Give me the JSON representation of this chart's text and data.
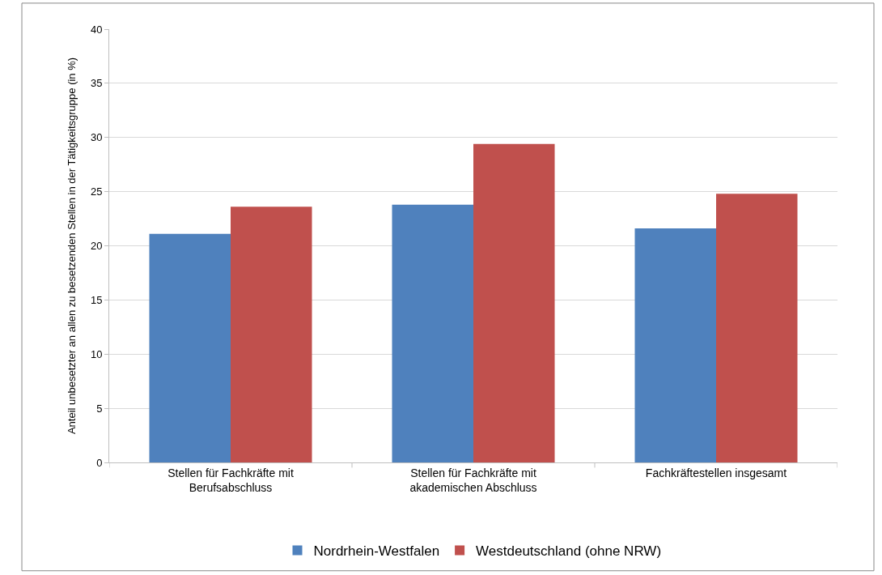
{
  "chart_data": {
    "type": "bar",
    "ylabel": "Anteil unbesetzter an allen zu besetzenden Stellen in der Tätigkeitsgruppe (in %)",
    "categories": [
      "Stellen für Fachkräfte mit Berufsabschluss",
      "Stellen für Fachkräfte mit akademischen Abschluss",
      "Fachkräftestellen insgesamt"
    ],
    "series": [
      {
        "name": "Nordrhein-Westfalen",
        "color": "#4f81bd",
        "values": [
          21.1,
          23.8,
          21.6
        ]
      },
      {
        "name": "Westdeutschland (ohne NRW)",
        "color": "#c0504d",
        "values": [
          23.6,
          29.4,
          24.8
        ]
      }
    ],
    "ylim": [
      0,
      40
    ],
    "yticks": [
      0,
      5,
      10,
      15,
      20,
      25,
      30,
      35,
      40
    ],
    "grid": "y",
    "legend": "bottom"
  }
}
